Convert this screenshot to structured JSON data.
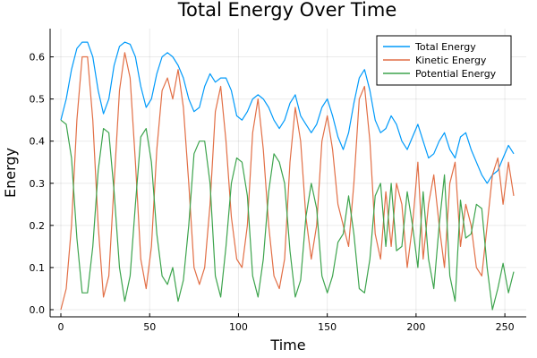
{
  "chart_data": {
    "type": "line",
    "title": "Total Energy Over Time",
    "xlabel": "Time",
    "ylabel": "Energy",
    "xlim": [
      0,
      256
    ],
    "ylim": [
      0,
      0.65
    ],
    "xticks": [
      0,
      50,
      100,
      150,
      200,
      250
    ],
    "yticks": [
      0.0,
      0.1,
      0.2,
      0.3,
      0.4,
      0.5,
      0.6
    ],
    "xtick_labels": [
      "0",
      "50",
      "100",
      "150",
      "200",
      "250"
    ],
    "ytick_labels": [
      "0.0",
      "0.1",
      "0.2",
      "0.3",
      "0.4",
      "0.5",
      "0.6"
    ],
    "grid": true,
    "legend_position": "top-right",
    "series": [
      {
        "name": "Total Energy",
        "color": "#009AFA",
        "x": [
          0,
          3,
          6,
          9,
          12,
          15,
          18,
          21,
          24,
          27,
          30,
          33,
          36,
          39,
          42,
          45,
          48,
          51,
          54,
          57,
          60,
          63,
          66,
          69,
          72,
          75,
          78,
          81,
          84,
          87,
          90,
          93,
          96,
          99,
          102,
          105,
          108,
          111,
          114,
          117,
          120,
          123,
          126,
          129,
          132,
          135,
          138,
          141,
          144,
          147,
          150,
          153,
          156,
          159,
          162,
          165,
          168,
          171,
          174,
          177,
          180,
          183,
          186,
          189,
          192,
          195,
          198,
          201,
          204,
          207,
          210,
          213,
          216,
          219,
          222,
          225,
          228,
          231,
          234,
          237,
          240,
          243,
          246,
          249,
          252,
          255
        ],
        "values": [
          0.45,
          0.5,
          0.57,
          0.62,
          0.635,
          0.635,
          0.6,
          0.52,
          0.465,
          0.5,
          0.58,
          0.625,
          0.635,
          0.63,
          0.6,
          0.53,
          0.48,
          0.5,
          0.56,
          0.6,
          0.61,
          0.6,
          0.58,
          0.55,
          0.5,
          0.47,
          0.48,
          0.53,
          0.56,
          0.54,
          0.55,
          0.55,
          0.52,
          0.46,
          0.45,
          0.47,
          0.5,
          0.51,
          0.5,
          0.48,
          0.45,
          0.43,
          0.45,
          0.49,
          0.51,
          0.46,
          0.44,
          0.42,
          0.44,
          0.48,
          0.5,
          0.46,
          0.41,
          0.38,
          0.42,
          0.49,
          0.55,
          0.57,
          0.52,
          0.45,
          0.42,
          0.43,
          0.46,
          0.44,
          0.4,
          0.38,
          0.41,
          0.44,
          0.4,
          0.36,
          0.37,
          0.4,
          0.42,
          0.38,
          0.36,
          0.41,
          0.42,
          0.38,
          0.35,
          0.32,
          0.3,
          0.32,
          0.33,
          0.36,
          0.39,
          0.37
        ]
      },
      {
        "name": "Kinetic Energy",
        "color": "#E26F46",
        "x": [
          0,
          3,
          6,
          9,
          12,
          15,
          18,
          21,
          24,
          27,
          30,
          33,
          36,
          39,
          42,
          45,
          48,
          51,
          54,
          57,
          60,
          63,
          66,
          69,
          72,
          75,
          78,
          81,
          84,
          87,
          90,
          93,
          96,
          99,
          102,
          105,
          108,
          111,
          114,
          117,
          120,
          123,
          126,
          129,
          132,
          135,
          138,
          141,
          144,
          147,
          150,
          153,
          156,
          159,
          162,
          165,
          168,
          171,
          174,
          177,
          180,
          183,
          186,
          189,
          192,
          195,
          198,
          201,
          204,
          207,
          210,
          213,
          216,
          219,
          222,
          225,
          228,
          231,
          234,
          237,
          240,
          243,
          246,
          249,
          252,
          255
        ],
        "values": [
          0.0,
          0.05,
          0.2,
          0.45,
          0.6,
          0.6,
          0.45,
          0.2,
          0.03,
          0.08,
          0.3,
          0.52,
          0.61,
          0.55,
          0.35,
          0.12,
          0.05,
          0.15,
          0.38,
          0.52,
          0.55,
          0.5,
          0.57,
          0.48,
          0.3,
          0.1,
          0.06,
          0.1,
          0.25,
          0.47,
          0.53,
          0.4,
          0.22,
          0.12,
          0.1,
          0.2,
          0.42,
          0.5,
          0.38,
          0.2,
          0.08,
          0.05,
          0.12,
          0.35,
          0.48,
          0.4,
          0.22,
          0.12,
          0.2,
          0.4,
          0.46,
          0.38,
          0.25,
          0.2,
          0.15,
          0.3,
          0.5,
          0.53,
          0.4,
          0.18,
          0.12,
          0.28,
          0.15,
          0.3,
          0.25,
          0.1,
          0.2,
          0.35,
          0.12,
          0.25,
          0.32,
          0.2,
          0.1,
          0.3,
          0.35,
          0.15,
          0.25,
          0.2,
          0.1,
          0.08,
          0.2,
          0.32,
          0.36,
          0.25,
          0.35,
          0.27
        ]
      },
      {
        "name": "Potential Energy",
        "color": "#3DA44D",
        "x": [
          0,
          3,
          6,
          9,
          12,
          15,
          18,
          21,
          24,
          27,
          30,
          33,
          36,
          39,
          42,
          45,
          48,
          51,
          54,
          57,
          60,
          63,
          66,
          69,
          72,
          75,
          78,
          81,
          84,
          87,
          90,
          93,
          96,
          99,
          102,
          105,
          108,
          111,
          114,
          117,
          120,
          123,
          126,
          129,
          132,
          135,
          138,
          141,
          144,
          147,
          150,
          153,
          156,
          159,
          162,
          165,
          168,
          171,
          174,
          177,
          180,
          183,
          186,
          189,
          192,
          195,
          198,
          201,
          204,
          207,
          210,
          213,
          216,
          219,
          222,
          225,
          228,
          231,
          234,
          237,
          240,
          243,
          246,
          249,
          252,
          255
        ],
        "values": [
          0.45,
          0.44,
          0.36,
          0.17,
          0.04,
          0.04,
          0.15,
          0.33,
          0.43,
          0.42,
          0.28,
          0.1,
          0.02,
          0.08,
          0.25,
          0.41,
          0.43,
          0.35,
          0.18,
          0.08,
          0.06,
          0.1,
          0.02,
          0.07,
          0.2,
          0.37,
          0.4,
          0.4,
          0.3,
          0.08,
          0.03,
          0.15,
          0.3,
          0.36,
          0.35,
          0.27,
          0.08,
          0.03,
          0.12,
          0.28,
          0.37,
          0.35,
          0.3,
          0.14,
          0.03,
          0.07,
          0.22,
          0.3,
          0.24,
          0.08,
          0.04,
          0.08,
          0.16,
          0.18,
          0.27,
          0.18,
          0.05,
          0.04,
          0.12,
          0.27,
          0.3,
          0.15,
          0.3,
          0.14,
          0.15,
          0.28,
          0.2,
          0.1,
          0.28,
          0.12,
          0.05,
          0.2,
          0.32,
          0.08,
          0.02,
          0.26,
          0.17,
          0.18,
          0.25,
          0.24,
          0.1,
          0.0,
          0.05,
          0.11,
          0.04,
          0.09
        ]
      }
    ]
  }
}
